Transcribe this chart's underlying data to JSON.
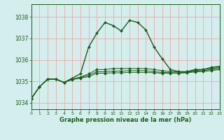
{
  "title": "Graphe pression niveau de la mer (hPa)",
  "bg_color": "#d4eeed",
  "grid_color": "#f0b0b0",
  "line_color": "#1a5c1a",
  "xlim": [
    0,
    23
  ],
  "ylim": [
    1033.7,
    1038.6
  ],
  "yticks": [
    1034,
    1035,
    1036,
    1037,
    1038
  ],
  "xticks": [
    0,
    1,
    2,
    3,
    4,
    5,
    6,
    7,
    8,
    9,
    10,
    11,
    12,
    13,
    14,
    15,
    16,
    17,
    18,
    19,
    20,
    21,
    22,
    23
  ],
  "series_main": [
    1034.2,
    1034.75,
    1035.1,
    1035.1,
    1034.95,
    1035.15,
    1035.35,
    1036.6,
    1037.25,
    1037.75,
    1037.6,
    1037.35,
    1037.85,
    1037.75,
    1037.4,
    1036.6,
    1036.05,
    1035.55,
    1035.45,
    1035.45,
    1035.55,
    1035.55,
    1035.65,
    1035.7
  ],
  "series2": [
    1034.2,
    1034.75,
    1035.1,
    1035.1,
    1034.95,
    1035.1,
    1035.2,
    1035.35,
    1035.55,
    1035.55,
    1035.6,
    1035.6,
    1035.6,
    1035.6,
    1035.6,
    1035.55,
    1035.5,
    1035.45,
    1035.45,
    1035.45,
    1035.5,
    1035.55,
    1035.6,
    1035.65
  ],
  "series3": [
    1034.2,
    1034.75,
    1035.1,
    1035.1,
    1034.95,
    1035.1,
    1035.18,
    1035.28,
    1035.45,
    1035.45,
    1035.48,
    1035.48,
    1035.5,
    1035.5,
    1035.5,
    1035.45,
    1035.42,
    1035.4,
    1035.4,
    1035.42,
    1035.48,
    1035.5,
    1035.55,
    1035.6
  ],
  "series4": [
    1034.2,
    1034.75,
    1035.1,
    1035.1,
    1034.95,
    1035.08,
    1035.15,
    1035.22,
    1035.38,
    1035.38,
    1035.4,
    1035.4,
    1035.42,
    1035.42,
    1035.42,
    1035.4,
    1035.38,
    1035.38,
    1035.38,
    1035.4,
    1035.44,
    1035.46,
    1035.5,
    1035.55
  ]
}
